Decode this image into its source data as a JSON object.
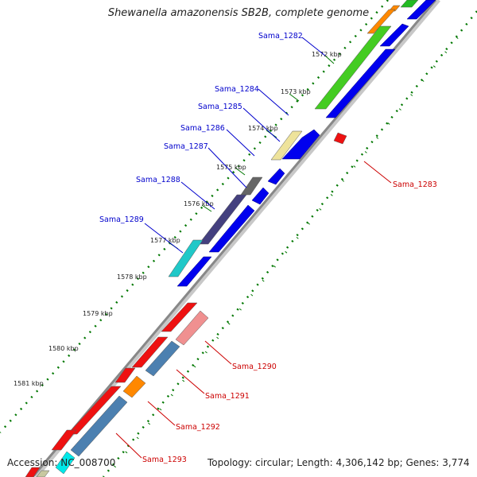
{
  "title": "Shewanella amazonensis SB2B, complete genome",
  "footer": {
    "accession": "Accession: NC_008700",
    "stats": "Topology: circular; Length: 4,306,142 bp; Genes: 3,774"
  },
  "ticks": [
    "1572 kbp",
    "1573 kbp",
    "1574 kbp",
    "1575 kbp",
    "1576 kbp",
    "1577 kbp",
    "1578 kbp",
    "1579 kbp",
    "1580 kbp",
    "1581 kbp"
  ],
  "genes_forward": [
    "Sama_1282",
    "Sama_1284",
    "Sama_1285",
    "Sama_1286",
    "Sama_1287",
    "Sama_1288",
    "Sama_1289"
  ],
  "genes_reverse": [
    "Sama_1283",
    "Sama_1290",
    "Sama_1291",
    "Sama_1292",
    "Sama_1293"
  ],
  "colors": {
    "forward_label": "#0000cc",
    "reverse_label": "#cc0000",
    "backbone": "#888888",
    "cds": "#0000ee",
    "gc_dots": "#007700"
  }
}
